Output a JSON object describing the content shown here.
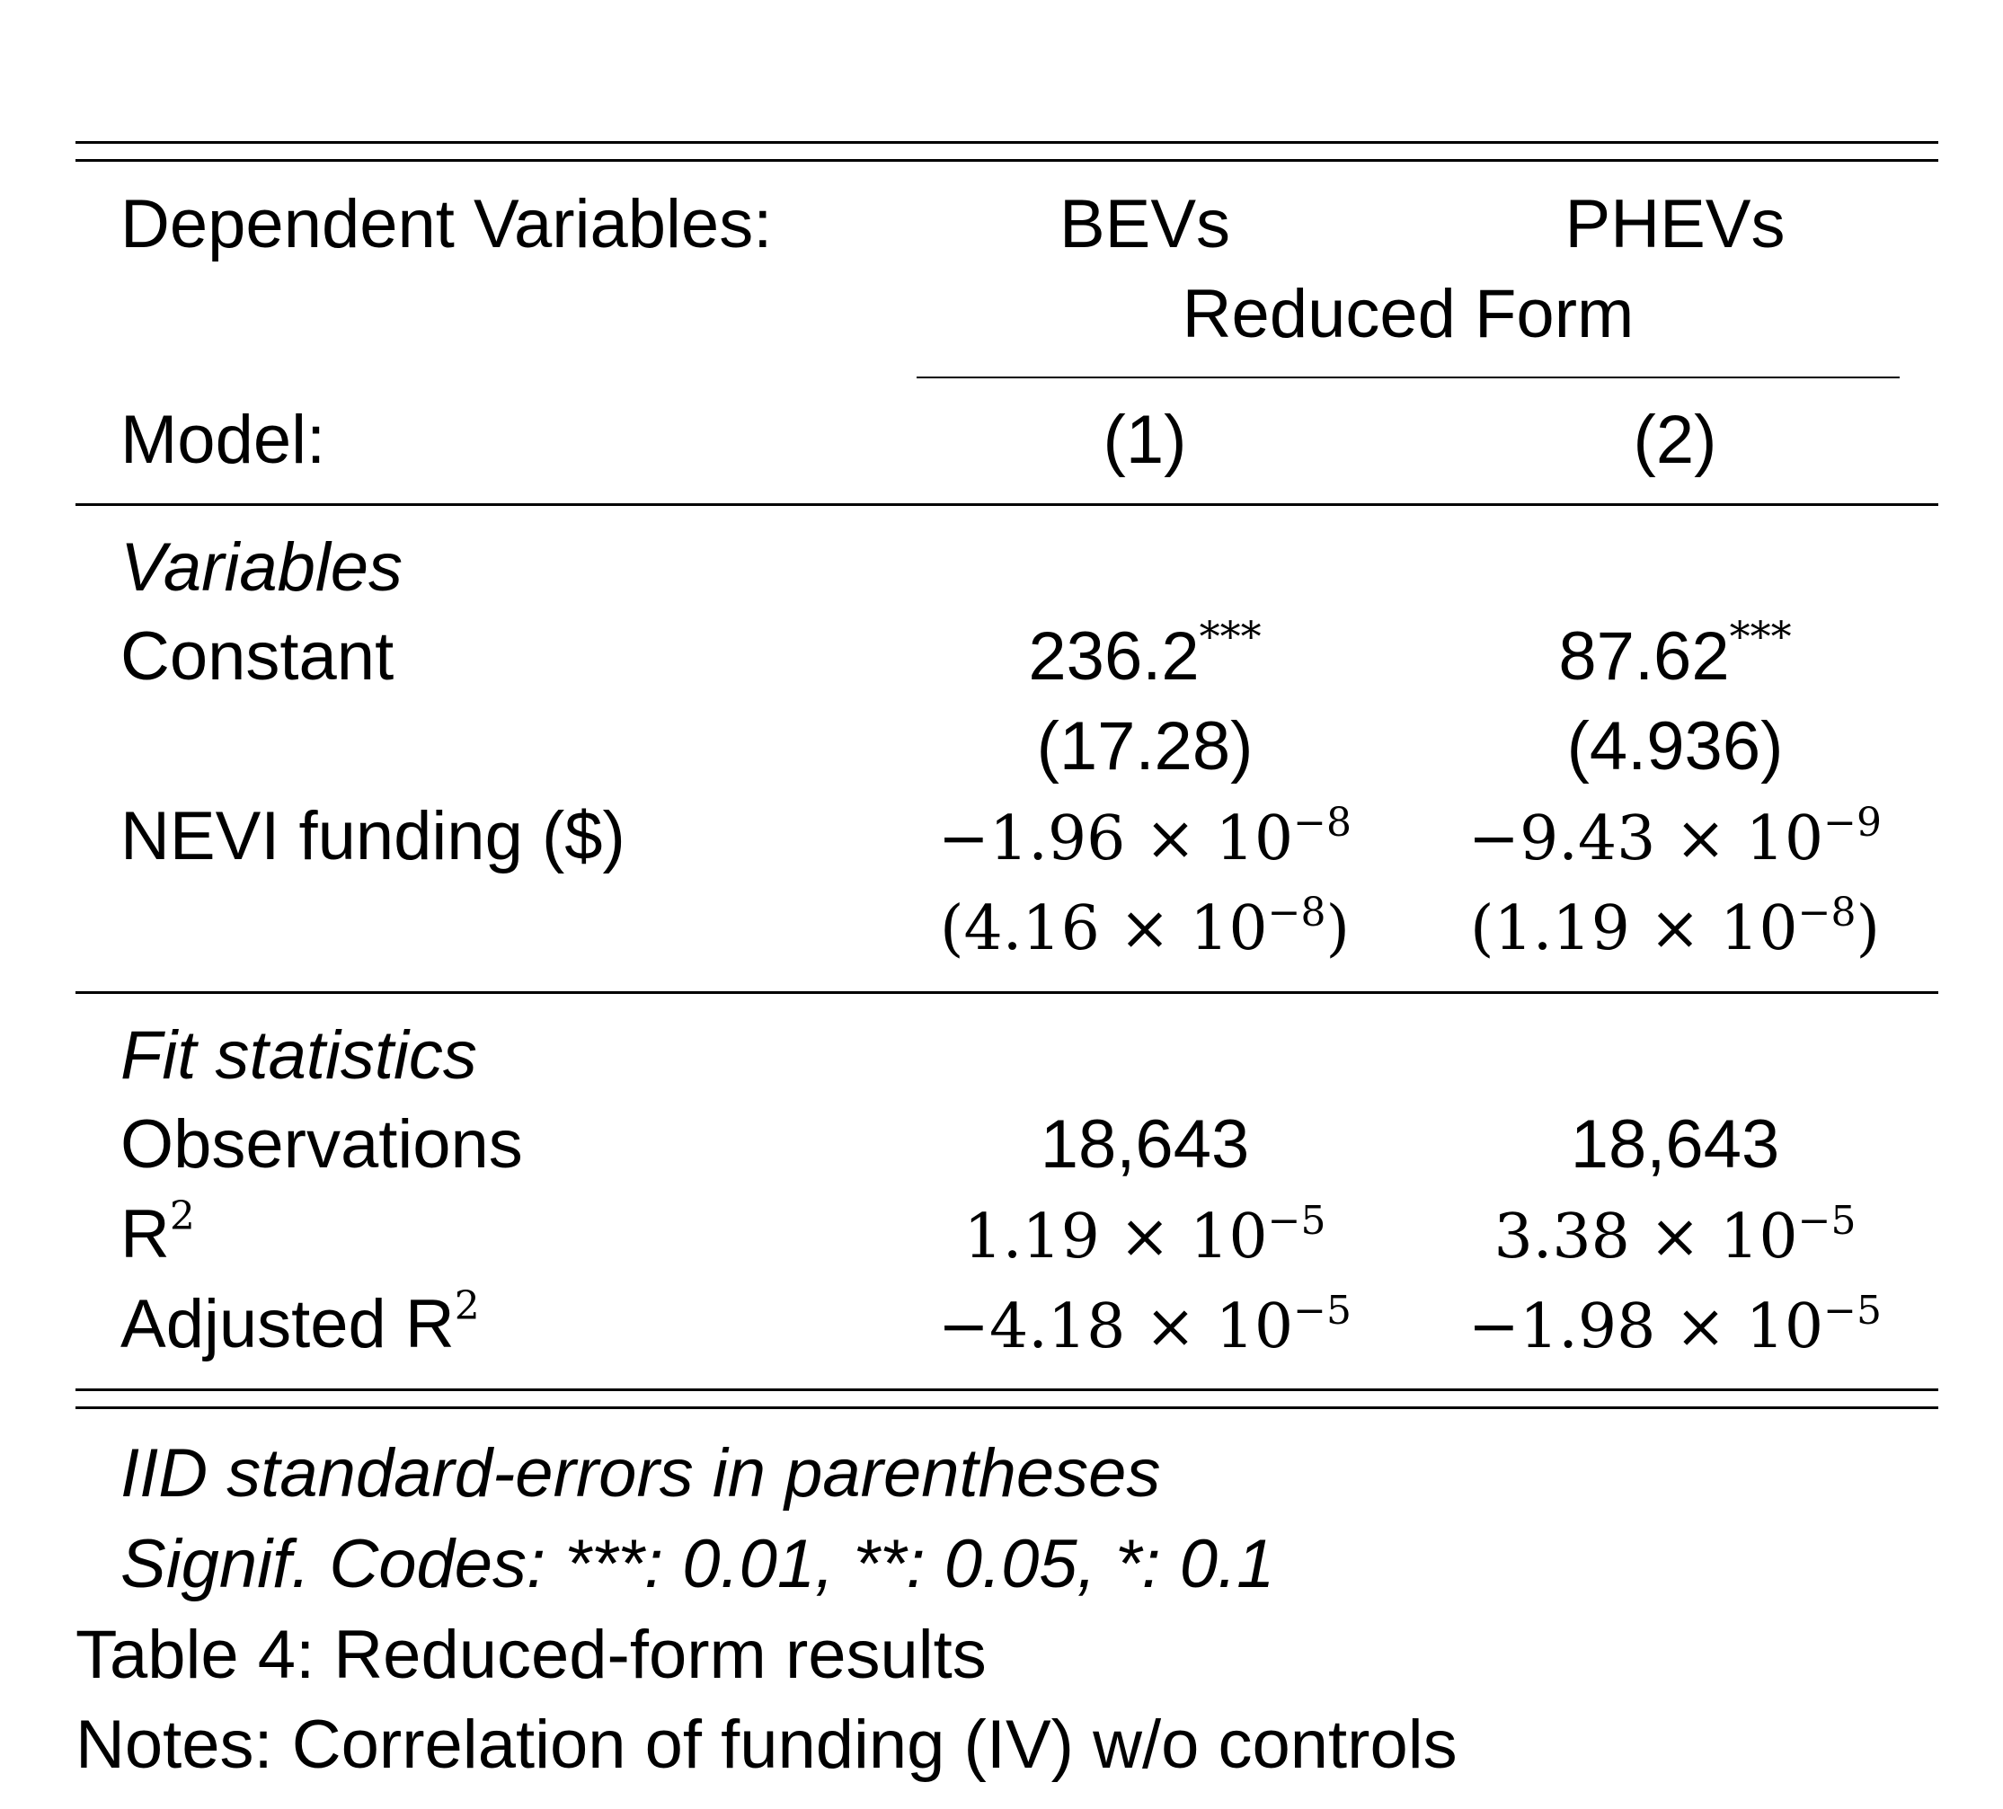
{
  "table": {
    "header": {
      "dep_label": "Dependent Variables:",
      "dep_col1": "BEVs",
      "dep_col2": "PHEVs",
      "span_label": "Reduced Form",
      "model_label": "Model:",
      "model_col1": "(1)",
      "model_col2": "(2)"
    },
    "variables": {
      "section_label": "Variables",
      "constant": {
        "label": "Constant",
        "col1_value": "236.2",
        "col1_stars": "***",
        "col2_value": "87.62",
        "col2_stars": "***",
        "col1_se": "(17.28)",
        "col2_se": "(4.936)"
      },
      "nevi": {
        "label": "NEVI funding ($)",
        "col1_mant": "−1.96 × 10",
        "col1_exp": "−8",
        "col2_mant": "−9.43 × 10",
        "col2_exp": "−9",
        "col1_se_mant": "(4.16 × 10",
        "col1_se_exp": "−8",
        "col1_se_close": ")",
        "col2_se_mant": "(1.19 × 10",
        "col2_se_exp": "−8",
        "col2_se_close": ")"
      }
    },
    "fit": {
      "section_label": "Fit statistics",
      "observations": {
        "label": "Observations",
        "col1": "18,643",
        "col2": "18,643"
      },
      "r2": {
        "label": "R",
        "label_sup": "2",
        "col1_mant": "1.19 × 10",
        "col1_exp": "−5",
        "col2_mant": "3.38 × 10",
        "col2_exp": "−5"
      },
      "adj_r2": {
        "label": "Adjusted R",
        "label_sup": "2",
        "col1_mant": "−4.18 × 10",
        "col1_exp": "−5",
        "col2_mant": "−1.98 × 10",
        "col2_exp": "−5"
      }
    },
    "footnotes": {
      "se_note": "IID standard-errors in parentheses",
      "signif": "Signif. Codes: ***: 0.01, **: 0.05, *: 0.1"
    }
  },
  "caption": {
    "title": "Table 4: Reduced-form results",
    "notes": "Notes: Correlation of funding (IV) w/o controls"
  }
}
